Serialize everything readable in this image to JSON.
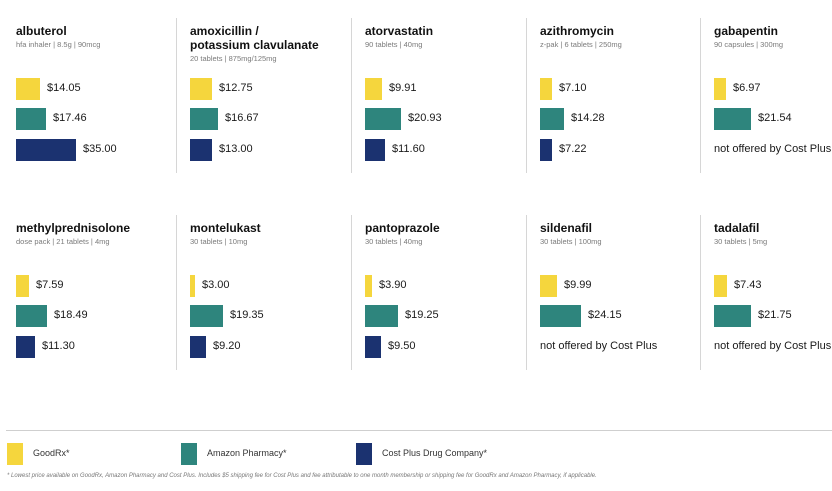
{
  "chart_data": {
    "type": "bar",
    "title": "",
    "xlabel": "",
    "ylabel": "",
    "series": [
      {
        "name": "GoodRx*",
        "color": "#f5d63d"
      },
      {
        "name": "Amazon Pharmacy*",
        "color": "#2e857d"
      },
      {
        "name": "Cost Plus Drug Company*",
        "color": "#1b3270"
      }
    ],
    "drugs": [
      {
        "name": "albuterol",
        "desc": "hfa inhaler | 8.5g | 90mcg",
        "prices": [
          "$14.05",
          "$17.46",
          "$35.00"
        ],
        "values": [
          14.05,
          17.46,
          35.0
        ]
      },
      {
        "name": "amoxicillin /\npotassium clavulanate",
        "desc": "20 tablets | 875mg/125mg",
        "prices": [
          "$12.75",
          "$16.67",
          "$13.00"
        ],
        "values": [
          12.75,
          16.67,
          13.0
        ]
      },
      {
        "name": "atorvastatin",
        "desc": "90 tablets | 40mg",
        "prices": [
          "$9.91",
          "$20.93",
          "$11.60"
        ],
        "values": [
          9.91,
          20.93,
          11.6
        ]
      },
      {
        "name": "azithromycin",
        "desc": "z-pak | 6 tablets | 250mg",
        "prices": [
          "$7.10",
          "$14.28",
          "$7.22"
        ],
        "values": [
          7.1,
          14.28,
          7.22
        ]
      },
      {
        "name": "gabapentin",
        "desc": "90 capsules | 300mg",
        "prices": [
          "$6.97",
          "$21.54",
          "not offered by Cost Plus"
        ],
        "values": [
          6.97,
          21.54,
          null
        ]
      },
      {
        "name": "methylprednisolone",
        "desc": "dose pack | 21 tablets | 4mg",
        "prices": [
          "$7.59",
          "$18.49",
          "$11.30"
        ],
        "values": [
          7.59,
          18.49,
          11.3
        ]
      },
      {
        "name": "montelukast",
        "desc": "30 tablets | 10mg",
        "prices": [
          "$3.00",
          "$19.35",
          "$9.20"
        ],
        "values": [
          3.0,
          19.35,
          9.2
        ]
      },
      {
        "name": "pantoprazole",
        "desc": "30 tablets | 40mg",
        "prices": [
          "$3.90",
          "$19.25",
          "$9.50"
        ],
        "values": [
          3.9,
          19.25,
          9.5
        ]
      },
      {
        "name": "sildenafil",
        "desc": "30 tablets | 100mg",
        "prices": [
          "$9.99",
          "$24.15",
          "not offered by Cost Plus"
        ],
        "values": [
          9.99,
          24.15,
          null
        ]
      },
      {
        "name": "tadalafil",
        "desc": "30 tablets | 5mg",
        "prices": [
          "$7.43",
          "$21.75",
          "not offered by Cost Plus"
        ],
        "values": [
          7.43,
          21.75,
          null
        ]
      }
    ]
  },
  "footnote": "* Lowest price available on GoodRx, Amazon Pharmacy and Cost Plus. Includes $5 shipping fee for Cost Plus and fee attributable to one month membership or shipping fee for GoodRx and Amazon Pharmacy, if applicable."
}
